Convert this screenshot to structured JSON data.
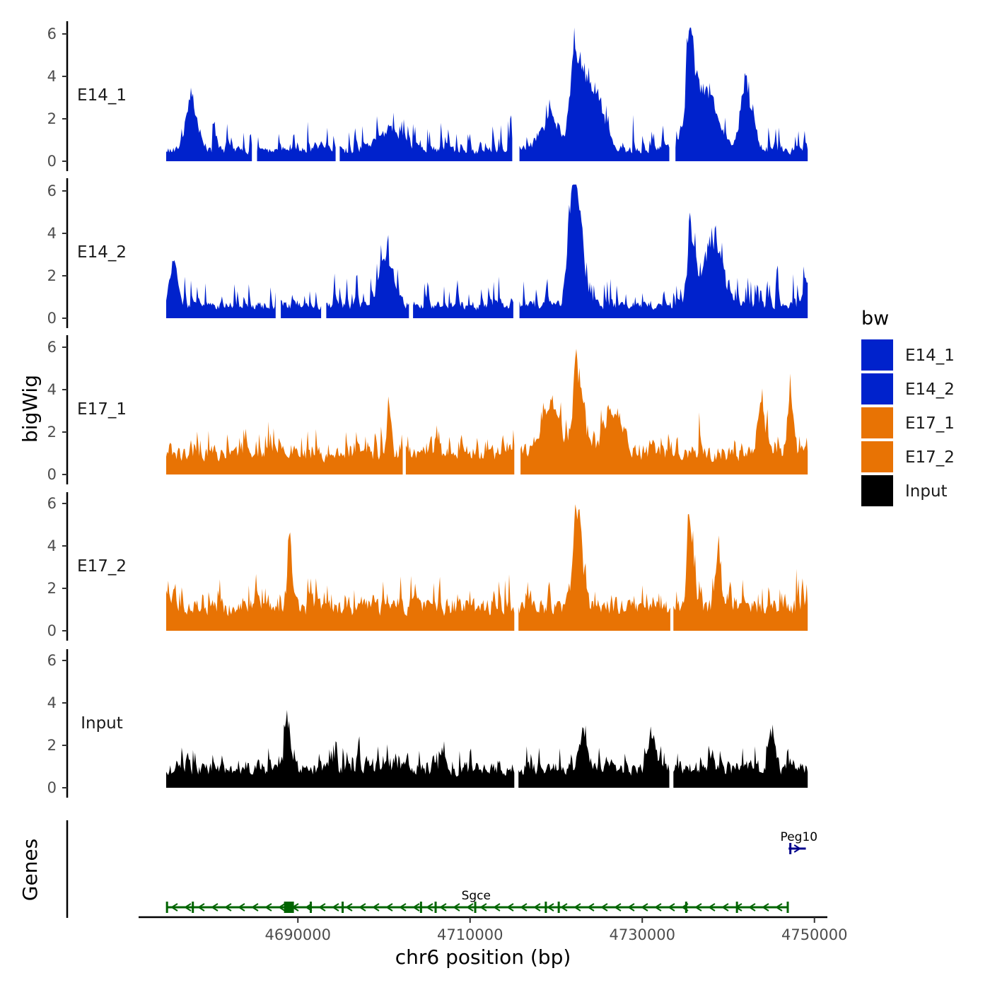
{
  "chart_data": {
    "type": "area",
    "ylabel": "bigWig",
    "xlabel": "chr6 position (bp)",
    "ylim": [
      0,
      6.3
    ],
    "y_ticks": [
      "0",
      "2",
      "4",
      "6"
    ],
    "xlim": [
      4671500,
      4751500
    ],
    "x_ticks": [
      "4690000",
      "4710000",
      "4730000",
      "4750000"
    ],
    "data_range": [
      4674700,
      4749300
    ],
    "legend": {
      "title": "bw",
      "position": "right",
      "entries": [
        {
          "label": "E14_1",
          "color": "#0022cc"
        },
        {
          "label": "E14_2",
          "color": "#0022cc"
        },
        {
          "label": "E17_1",
          "color": "#e87304"
        },
        {
          "label": "E17_2",
          "color": "#e87304"
        },
        {
          "label": "Input",
          "color": "#000000"
        }
      ]
    },
    "series": [
      {
        "name": "E14_1",
        "color": "#0022cc",
        "seed": 11,
        "base": 0.55,
        "noise": 1.9,
        "peaks": [
          [
            4677600,
            2.8,
            1000
          ],
          [
            4700500,
            1.2,
            2000
          ],
          [
            4719200,
            2.0,
            1500
          ],
          [
            4722200,
            6.0,
            800
          ],
          [
            4724200,
            4.0,
            1500
          ],
          [
            4735500,
            5.8,
            700
          ],
          [
            4737500,
            4.0,
            1500
          ],
          [
            4742000,
            3.5,
            1000
          ]
        ],
        "gaps": [
          [
            4684700,
            4685200
          ],
          [
            4694400,
            4694800
          ],
          [
            4715000,
            4715700
          ],
          [
            4733200,
            4733800
          ]
        ]
      },
      {
        "name": "E14_2",
        "color": "#0022cc",
        "seed": 23,
        "base": 0.6,
        "noise": 1.9,
        "peaks": [
          [
            4675500,
            2.4,
            700
          ],
          [
            4700200,
            2.7,
            1200
          ],
          [
            4722500,
            6.2,
            800
          ],
          [
            4721700,
            4.8,
            700
          ],
          [
            4735600,
            4.0,
            600
          ],
          [
            4738200,
            3.8,
            1500
          ],
          [
            4749000,
            1.7,
            500
          ]
        ],
        "gaps": [
          [
            4687500,
            4687900
          ],
          [
            4692800,
            4693200
          ],
          [
            4703000,
            4703300
          ],
          [
            4715100,
            4715700
          ]
        ]
      },
      {
        "name": "E17_1",
        "color": "#e87304",
        "seed": 37,
        "base": 1.0,
        "noise": 1.6,
        "peaks": [
          [
            4700500,
            3.7,
            300
          ],
          [
            4719300,
            3.0,
            1500
          ],
          [
            4722500,
            5.5,
            800
          ],
          [
            4726500,
            2.8,
            1500
          ],
          [
            4743800,
            3.8,
            500
          ],
          [
            4747100,
            3.2,
            500
          ]
        ],
        "gaps": [
          [
            4715200,
            4715800
          ],
          [
            4702300,
            4702500
          ]
        ]
      },
      {
        "name": "E17_2",
        "color": "#e87304",
        "seed": 41,
        "base": 1.1,
        "noise": 1.7,
        "peaks": [
          [
            4689000,
            3.7,
            400
          ],
          [
            4722400,
            6.2,
            700
          ],
          [
            4735500,
            4.6,
            500
          ],
          [
            4738700,
            3.9,
            400
          ]
        ],
        "gaps": [
          [
            4715200,
            4715600
          ],
          [
            4733300,
            4733600
          ]
        ]
      },
      {
        "name": "Input",
        "color": "#000000",
        "seed": 53,
        "base": 0.9,
        "noise": 1.5,
        "peaks": [
          [
            4688700,
            3.3,
            400
          ],
          [
            4723100,
            2.4,
            600
          ],
          [
            4731000,
            2.3,
            500
          ],
          [
            4745000,
            2.4,
            500
          ]
        ],
        "gaps": [
          [
            4715200,
            4715500
          ],
          [
            4733200,
            4733500
          ]
        ]
      }
    ],
    "genes_track": {
      "label": "Genes",
      "genes": [
        {
          "name": "Sgce",
          "start": 4674700,
          "end": 4747000,
          "strand": "-",
          "color": "#006400",
          "exons": [
            4674800,
            4677800,
            4688800,
            4689300,
            4691500,
            4695200,
            4704300,
            4706000,
            4710600,
            4718800,
            4720300,
            4735100,
            4741000,
            4746900
          ]
        },
        {
          "name": "Peg10",
          "start": 4747000,
          "end": 4749000,
          "strand": "+",
          "color": "#00008b",
          "exons": [
            4747200
          ]
        }
      ]
    }
  }
}
